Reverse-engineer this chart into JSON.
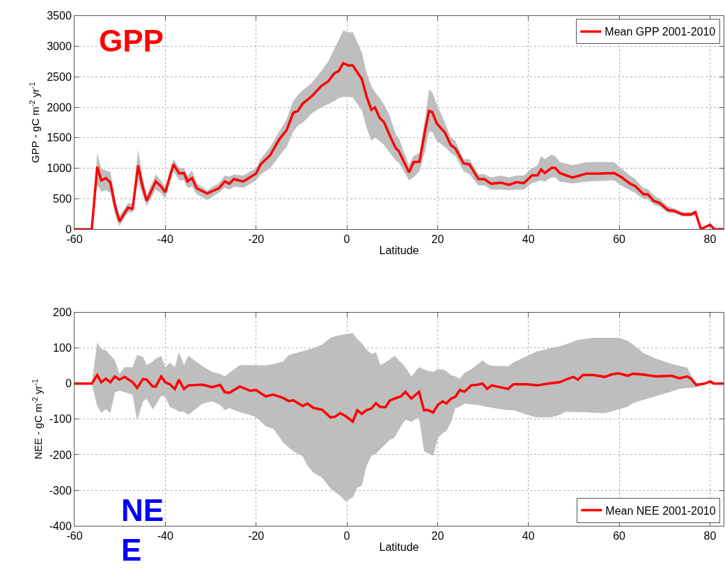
{
  "chart_data": [
    {
      "type": "line",
      "xlabel": "Latitude",
      "ylabel": "GPP - gC m$^{-2}$ yr$^{-1}$",
      "annotations": [
        "GPP"
      ],
      "xlim": [
        -60,
        83
      ],
      "xticks": [
        -60,
        -40,
        -20,
        0,
        20,
        40,
        60,
        80
      ],
      "ylim": [
        0,
        3500
      ],
      "yticks": [
        0,
        500,
        1000,
        1500,
        2000,
        2500,
        3000,
        3500
      ],
      "grid": true,
      "legend": "top right",
      "line_style": "solid",
      "series": [
        {
          "name": "Mean GPP 2001-2010",
          "color": "#ff0000",
          "x": [
            -60,
            -56.2,
            -55,
            -54.1,
            -53.1,
            -52.1,
            -51.1,
            -50.1,
            -48.2,
            -47.2,
            -46,
            -45.1,
            -44.1,
            -42.1,
            -41,
            -40,
            -38.2,
            -36.9,
            -35.9,
            -35.1,
            -34.1,
            -33.1,
            -30.8,
            -28.2,
            -26.9,
            -25.9,
            -24.9,
            -22.8,
            -20,
            -19,
            -16.9,
            -14.9,
            -13.3,
            -11.8,
            -10.8,
            -9.7,
            -7.7,
            -5.6,
            -4.1,
            -2.8,
            -1.8,
            -0.8,
            0.3,
            1.3,
            3.3,
            4.4,
            5.4,
            6.2,
            7.2,
            8.2,
            9.5,
            10.8,
            11.4,
            13.7,
            14.7,
            16,
            17.3,
            18.1,
            18.8,
            19.8,
            21.6,
            22.9,
            23.9,
            25.7,
            27,
            29,
            30.3,
            31.8,
            33.9,
            35.7,
            37.4,
            39,
            40.8,
            42,
            42.8,
            43.6,
            45.1,
            45.9,
            46.9,
            49.7,
            52.8,
            55.3,
            58.9,
            60.4,
            62.4,
            63.5,
            65.3,
            66.3,
            67.6,
            68.9,
            70.7,
            72.2,
            74,
            75.8,
            76.8,
            78,
            80,
            81,
            83
          ],
          "values": [
            0,
            0,
            1026,
            802,
            840,
            765,
            392,
            130,
            354,
            336,
            1045,
            728,
            466,
            784,
            709,
            608,
            1063,
            914,
            922,
            784,
            840,
            672,
            586,
            672,
            784,
            746,
            821,
            784,
            914,
            1063,
            1213,
            1474,
            1623,
            1910,
            1940,
            2063,
            2183,
            2351,
            2425,
            2556,
            2593,
            2724,
            2687,
            2687,
            2463,
            2164,
            1959,
            1996,
            1828,
            1754,
            1530,
            1325,
            1287,
            933,
            1101,
            1108,
            1642,
            1940,
            1922,
            1735,
            1586,
            1381,
            1325,
            1082,
            1063,
            821,
            821,
            746,
            765,
            728,
            772,
            757,
            884,
            884,
            981,
            922,
            1007,
            1007,
            922,
            847,
            914,
            914,
            922,
            858,
            746,
            709,
            578,
            571,
            466,
            429,
            317,
            299,
            243,
            243,
            280,
            0,
            75,
            0,
            0
          ],
          "lower": [
            0,
            0,
            730,
            620,
            640,
            600,
            250,
            50,
            280,
            280,
            800,
            580,
            380,
            650,
            600,
            500,
            950,
            800,
            800,
            680,
            700,
            580,
            480,
            600,
            680,
            650,
            700,
            680,
            800,
            900,
            1000,
            1200,
            1350,
            1600,
            1700,
            1750,
            1900,
            2000,
            2050,
            2100,
            2150,
            2170,
            2170,
            2160,
            1950,
            1650,
            1450,
            1500,
            1450,
            1380,
            1250,
            1120,
            1100,
            800,
            850,
            950,
            1300,
            1600,
            1600,
            1450,
            1350,
            1250,
            1200,
            950,
            900,
            720,
            720,
            650,
            650,
            640,
            650,
            650,
            760,
            780,
            800,
            780,
            850,
            850,
            780,
            750,
            780,
            790,
            800,
            720,
            640,
            600,
            500,
            490,
            400,
            370,
            270,
            260,
            210,
            210,
            240,
            0,
            60,
            0,
            0
          ],
          "upper": [
            0,
            0,
            1250,
            1000,
            960,
            940,
            520,
            220,
            430,
            420,
            1306,
            900,
            560,
            900,
            800,
            700,
            1150,
            1000,
            1000,
            880,
            960,
            760,
            640,
            760,
            880,
            860,
            900,
            880,
            1000,
            1150,
            1350,
            1600,
            1800,
            2100,
            2200,
            2280,
            2400,
            2600,
            2750,
            2950,
            3100,
            3260,
            3230,
            3230,
            2900,
            2550,
            2350,
            2250,
            2150,
            2050,
            1850,
            1550,
            1500,
            1050,
            1200,
            1250,
            1850,
            2290,
            2250,
            2050,
            1750,
            1500,
            1450,
            1150,
            1150,
            900,
            900,
            850,
            880,
            850,
            880,
            880,
            1000,
            1050,
            1200,
            1150,
            1220,
            1200,
            1100,
            1050,
            1100,
            1100,
            1100,
            1000,
            880,
            820,
            680,
            660,
            560,
            500,
            380,
            340,
            280,
            280,
            310,
            0,
            90,
            0,
            0
          ]
        }
      ]
    },
    {
      "type": "line",
      "xlabel": "Latitude",
      "ylabel": "NEE - gC m$^{-2}$ yr$^{-1}$",
      "annotations": [
        "NE\nE"
      ],
      "xlim": [
        -60,
        83
      ],
      "xticks": [
        -60,
        -40,
        -20,
        0,
        20,
        40,
        60,
        80
      ],
      "ylim": [
        -400,
        200
      ],
      "yticks": [
        -400,
        -300,
        -200,
        -100,
        0,
        100,
        200
      ],
      "grid": true,
      "legend": "bottom right",
      "line_style": "solid",
      "series": [
        {
          "name": "Mean NEE 2001-2010",
          "color": "#ff0000",
          "x": [
            -60,
            -56.2,
            -55,
            -54.1,
            -53.1,
            -52.1,
            -51.1,
            -50.1,
            -49,
            -47.2,
            -46.2,
            -44.9,
            -44.1,
            -42.8,
            -42.1,
            -40.9,
            -40,
            -39,
            -37.9,
            -37,
            -35.9,
            -34.9,
            -31.8,
            -29.7,
            -27.9,
            -26.9,
            -25.9,
            -23.6,
            -21.3,
            -20,
            -17.9,
            -16.2,
            -14.1,
            -12.8,
            -11.8,
            -9.7,
            -8.7,
            -7.4,
            -5.4,
            -3.6,
            -2.6,
            -1.5,
            -0.3,
            1.3,
            2.3,
            3.3,
            4.4,
            5.4,
            6.4,
            7.4,
            8.5,
            9.5,
            10.5,
            11.9,
            12.9,
            14.2,
            15.9,
            17,
            17.8,
            19,
            20.1,
            21.1,
            21.9,
            22.9,
            23.9,
            24.9,
            25.9,
            27.4,
            28.9,
            29.9,
            30.9,
            31.9,
            35.5,
            36.7,
            39.8,
            41.8,
            44.9,
            46.9,
            48.2,
            49.9,
            50.9,
            52,
            54.3,
            56.8,
            58.4,
            59.9,
            61.9,
            63,
            65.5,
            68.1,
            71.6,
            73.2,
            75,
            75.7,
            77,
            78.8,
            80.1,
            80.8,
            83
          ],
          "values": [
            0,
            0,
            24,
            4,
            14,
            4,
            20,
            11,
            19,
            4,
            -12,
            13,
            11,
            -8,
            -8,
            20,
            4,
            -2,
            -15,
            11,
            -15,
            -5,
            -3,
            -10,
            -4,
            -24,
            -26,
            -8,
            -20,
            -18,
            -36,
            -31,
            -40,
            -49,
            -47,
            -63,
            -56,
            -68,
            -74,
            -95,
            -93,
            -83,
            -91,
            -107,
            -75,
            -85,
            -74,
            -70,
            -55,
            -66,
            -66,
            -47,
            -42,
            -36,
            -23,
            -42,
            -23,
            -75,
            -74,
            -81,
            -59,
            -50,
            -56,
            -43,
            -37,
            -18,
            -23,
            -5,
            -3,
            0,
            -15,
            -5,
            -15,
            -2,
            -2,
            -5,
            1,
            4,
            11,
            19,
            11,
            24,
            24,
            19,
            26,
            29,
            22,
            28,
            25,
            20,
            22,
            15,
            20,
            15,
            -4,
            0,
            6,
            0,
            0
          ],
          "lower": [
            0,
            0,
            -63,
            -82,
            -72,
            -82,
            -24,
            -20,
            -24,
            -31,
            -104,
            -50,
            -43,
            -72,
            -60,
            -34,
            -37,
            -66,
            -72,
            -79,
            -79,
            -88,
            -56,
            -50,
            -60,
            -75,
            -69,
            -80,
            -88,
            -95,
            -120,
            -127,
            -165,
            -180,
            -190,
            -205,
            -230,
            -250,
            -265,
            -295,
            -305,
            -315,
            -331,
            -320,
            -293,
            -286,
            -229,
            -203,
            -197,
            -184,
            -170,
            -158,
            -152,
            -120,
            -101,
            -107,
            -95,
            -190,
            -195,
            -203,
            -152,
            -140,
            -133,
            -110,
            -69,
            -65,
            -56,
            -58,
            -60,
            -63,
            -65,
            -68,
            -75,
            -75,
            -88,
            -95,
            -95,
            -88,
            -79,
            -80,
            -80,
            -80,
            -82,
            -83,
            -78,
            -72,
            -65,
            -55,
            -45,
            -35,
            -22,
            -15,
            -12,
            -12,
            -10,
            0,
            6,
            0,
            0
          ],
          "upper": [
            0,
            0,
            116,
            97,
            94,
            80,
            65,
            27,
            46,
            46,
            81,
            75,
            52,
            62,
            70,
            78,
            46,
            59,
            46,
            88,
            52,
            78,
            49,
            33,
            27,
            20,
            30,
            52,
            52,
            52,
            51,
            55,
            62,
            80,
            84,
            91,
            95,
            100,
            110,
            129,
            133,
            136,
            139,
            142,
            125,
            113,
            95,
            84,
            88,
            52,
            60,
            68,
            78,
            60,
            46,
            20,
            46,
            40,
            36,
            33,
            40,
            40,
            35,
            24,
            20,
            14,
            30,
            40,
            55,
            65,
            55,
            50,
            49,
            60,
            78,
            90,
            100,
            105,
            110,
            118,
            123,
            125,
            129,
            129,
            129,
            129,
            120,
            110,
            85,
            70,
            55,
            50,
            45,
            27,
            2,
            0,
            6,
            0,
            0
          ]
        }
      ]
    }
  ]
}
